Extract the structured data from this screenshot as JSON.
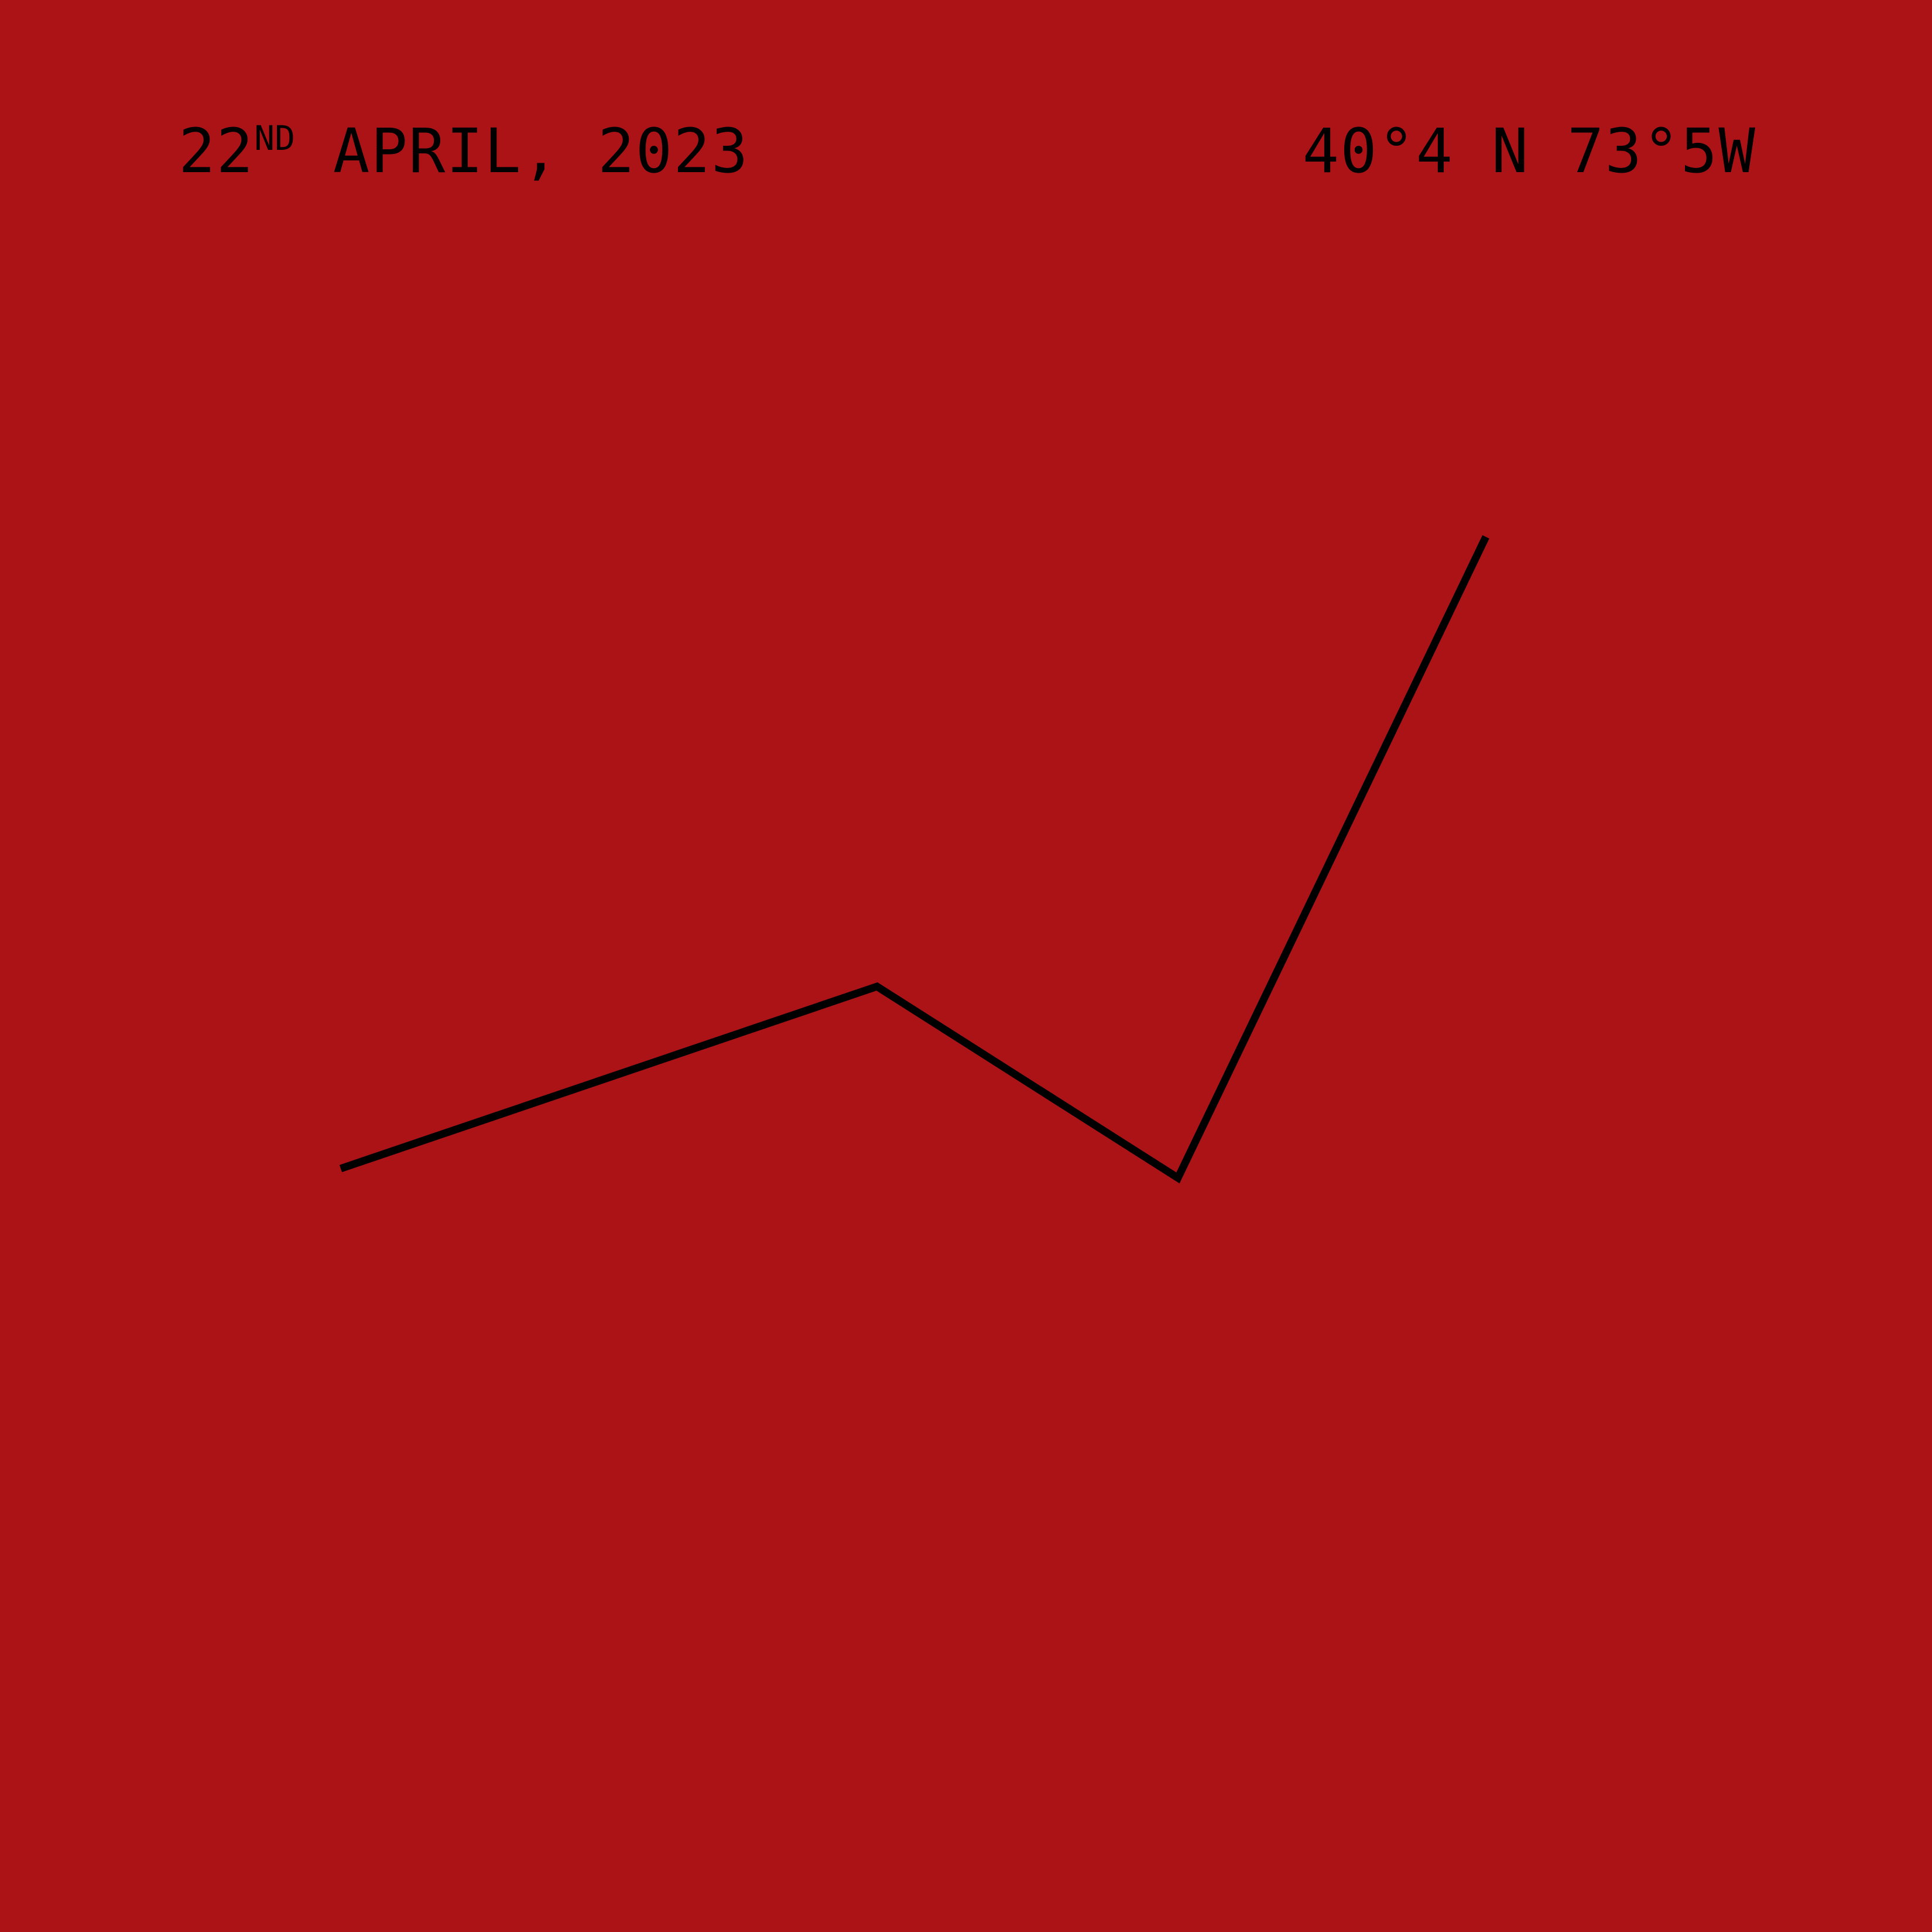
{
  "header": {
    "date_day": "22",
    "date_suffix": "ND",
    "date_rest": "APRIL, 2023",
    "coordinates": "40°4 N 73°5W"
  },
  "colors": {
    "background": "#ab1317",
    "line": "#000000"
  }
}
